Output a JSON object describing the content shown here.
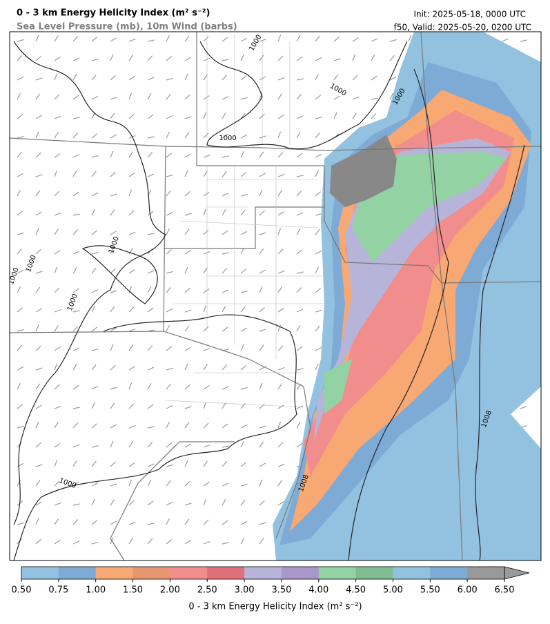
{
  "header": {
    "title": "0 - 3 km Energy Helicity Index (m² s⁻²)",
    "subtitle": "Sea Level Pressure (mb), 10m Wind (barbs)",
    "init": "Init: 2025-05-18, 0000 UTC",
    "valid": "f50, Valid: 2025-05-20, 0200 UTC"
  },
  "map": {
    "contour_labels": [
      "1000",
      "1000",
      "1000",
      "1000",
      "1000",
      "1000",
      "1000",
      "1000",
      "1000",
      "1008",
      "1008"
    ]
  },
  "colorbar": {
    "label": "0 - 3 km Energy Helicity Index (m² s⁻²)",
    "ticks": [
      {
        "value": 0.5,
        "label": "0.50"
      },
      {
        "value": 0.75,
        "label": "0.75"
      },
      {
        "value": 1.0,
        "label": "1.00"
      },
      {
        "value": 1.5,
        "label": "1.50"
      },
      {
        "value": 2.0,
        "label": "2.00"
      },
      {
        "value": 2.5,
        "label": "2.50"
      },
      {
        "value": 3.0,
        "label": "3.00"
      },
      {
        "value": 3.5,
        "label": "3.50"
      },
      {
        "value": 4.0,
        "label": "4.00"
      },
      {
        "value": 4.5,
        "label": "4.50"
      },
      {
        "value": 5.0,
        "label": "5.00"
      },
      {
        "value": 5.5,
        "label": "5.50"
      },
      {
        "value": 6.0,
        "label": "6.00"
      },
      {
        "value": 6.5,
        "label": "6.50"
      }
    ],
    "colors": [
      "#93c2e0",
      "#7eaad6",
      "#f7a873",
      "#e8966f",
      "#f28d8d",
      "#df7079",
      "#b7b4d9",
      "#a897cb",
      "#93d2a2",
      "#80bb92",
      "#93c2e0",
      "#7eaad6",
      "#999999"
    ],
    "extend_color": "#999999"
  }
}
